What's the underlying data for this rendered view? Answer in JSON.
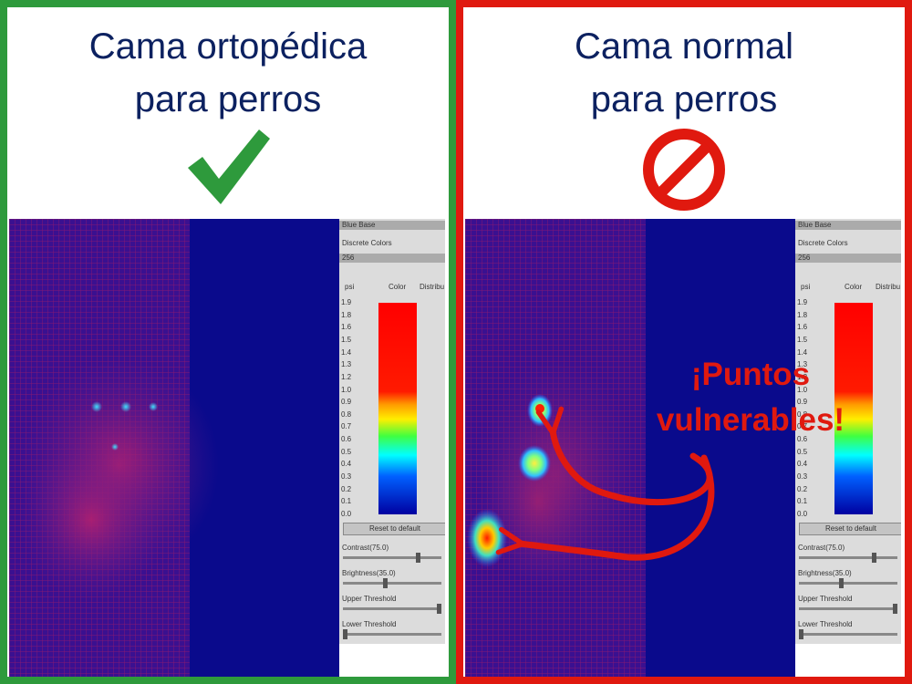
{
  "left_panel": {
    "title_line1": "Cama ortopédica",
    "title_line2": "para perros",
    "symbol": "check-mark-icon",
    "border_color": "#2e9a3c"
  },
  "right_panel": {
    "title_line1": "Cama normal",
    "title_line2": "para perros",
    "symbol": "prohibited-icon",
    "border_color": "#e0190f",
    "callout_line1": "¡Puntos",
    "callout_line2": "vulnerables!"
  },
  "control_panel": {
    "row1": "Blue Base",
    "row2": "Discrete Colors",
    "row3": "256",
    "col_psi": "psi",
    "col_color": "Color",
    "col_distrib": "Distribu",
    "scale": [
      "1.9",
      "1.8",
      "1.6",
      "1.5",
      "1.4",
      "1.3",
      "1.2",
      "1.0",
      "0.9",
      "0.8",
      "0.7",
      "0.6",
      "0.5",
      "0.4",
      "0.3",
      "0.2",
      "0.1",
      "0.0"
    ],
    "reset_label": "Reset to default",
    "contrast_label": "Contrast(75.0)",
    "brightness_label": "Brightness(35.0)",
    "upper_label": "Upper Threshold",
    "lower_label": "Lower Threshold"
  },
  "colors": {
    "heatmap_background": "#0a0a8c",
    "title_text": "#0c2160"
  }
}
